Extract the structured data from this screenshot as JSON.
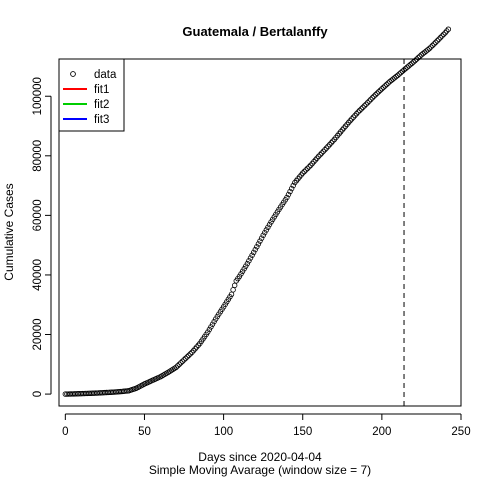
{
  "chart_data": {
    "type": "scatter",
    "title": "Guatemala / Bertalanffy",
    "xlabel": "Days since 2020-04-04",
    "subtitle": "Simple Moving Avarage (window size = 7)",
    "ylabel": "Cumulative Cases",
    "xlim": [
      -4,
      250
    ],
    "ylim": [
      -4000,
      112500
    ],
    "xticks": [
      0,
      50,
      100,
      150,
      200,
      250
    ],
    "xtick_labels": [
      "0",
      "50",
      "100",
      "150",
      "200",
      "250"
    ],
    "yticks": [
      0,
      20000,
      40000,
      60000,
      80000,
      100000
    ],
    "ytick_labels": [
      "0",
      "20000",
      "40000",
      "60000",
      "80000",
      "100000"
    ],
    "vline_x": 214,
    "vline_style": "dashed",
    "legend": {
      "position": "top-left",
      "entries": [
        {
          "label": "data",
          "kind": "point",
          "color": "#000000"
        },
        {
          "label": "fit1",
          "kind": "line",
          "color": "#ff0000"
        },
        {
          "label": "fit2",
          "kind": "line",
          "color": "#00cd00"
        },
        {
          "label": "fit3",
          "kind": "line",
          "color": "#0000ff"
        }
      ]
    },
    "series": [
      {
        "name": "data",
        "marker": "open-circle",
        "x": [
          0,
          5,
          10,
          15,
          20,
          25,
          30,
          35,
          40,
          45,
          50,
          55,
          60,
          65,
          70,
          75,
          80,
          85,
          90,
          95,
          100,
          105,
          108,
          110,
          115,
          120,
          125,
          130,
          135,
          140,
          145,
          150,
          155,
          160,
          165,
          170,
          175,
          180,
          185,
          190,
          195,
          200,
          205,
          210,
          215,
          220,
          225,
          230,
          235,
          240,
          242
        ],
        "y": [
          0,
          50,
          150,
          250,
          350,
          500,
          650,
          850,
          1100,
          2000,
          3400,
          4600,
          5800,
          7300,
          9000,
          11500,
          14000,
          17000,
          20800,
          25200,
          29300,
          33500,
          38000,
          39500,
          43800,
          48500,
          53300,
          57800,
          62000,
          66000,
          71000,
          74200,
          76800,
          79800,
          82600,
          85500,
          88700,
          91800,
          94700,
          97300,
          100000,
          102500,
          104900,
          107000,
          109300,
          111500,
          113900,
          116000,
          118600,
          121300,
          122500
        ]
      }
    ]
  }
}
